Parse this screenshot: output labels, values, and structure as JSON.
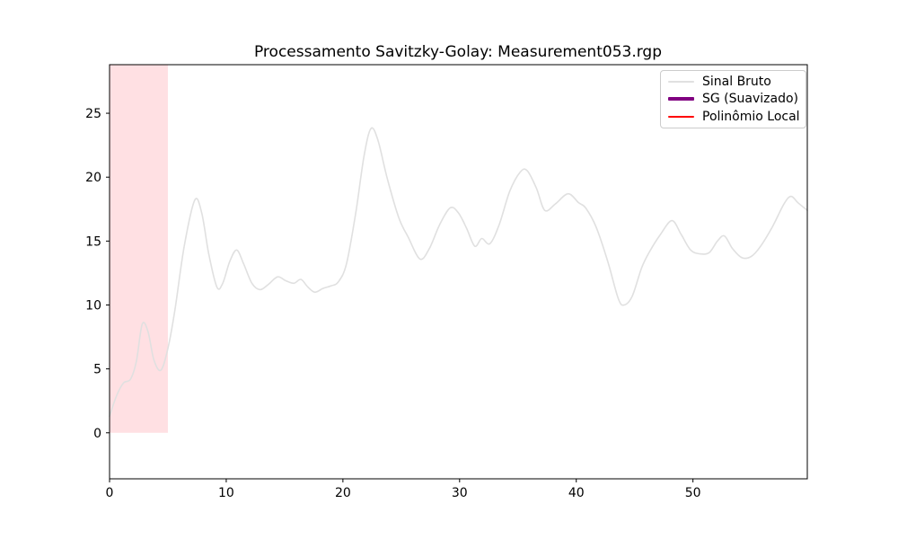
{
  "figure": {
    "background": "#ffffff"
  },
  "chart_data": {
    "type": "line",
    "title": "Processamento Savitzky-Golay: Measurement053.rgp",
    "xlabel": "",
    "ylabel": "",
    "xlim": [
      0,
      59.8
    ],
    "ylim": [
      -3.6,
      28.8
    ],
    "xticks": [
      0,
      10,
      20,
      30,
      40,
      50
    ],
    "yticks": [
      0,
      5,
      10,
      15,
      20,
      25
    ],
    "grid": false,
    "axis_color": "#000000",
    "legend": {
      "position": "upper right",
      "entries": [
        {
          "label": "Sinal Bruto",
          "color": "#e0e0e0",
          "linewidth": 2
        },
        {
          "label": "SG (Suavizado)",
          "color": "#800080",
          "linewidth": 4
        },
        {
          "label": "Polinômio Local",
          "color": "#ff0000",
          "linewidth": 2
        }
      ]
    },
    "shaded_region": {
      "x_start": 0,
      "x_end": 5,
      "y_start": 0,
      "y_end": 28.8,
      "color": "#ffe0e3"
    },
    "series": [
      {
        "name": "Sinal Bruto",
        "color": "#e0e0e0",
        "linewidth": 1.6,
        "points": [
          [
            0,
            1.3
          ],
          [
            0.6,
            2.9
          ],
          [
            1.2,
            3.9
          ],
          [
            1.8,
            4.2
          ],
          [
            2.3,
            5.6
          ],
          [
            2.8,
            8.5
          ],
          [
            3.3,
            7.9
          ],
          [
            3.8,
            5.7
          ],
          [
            4.4,
            4.9
          ],
          [
            5.0,
            6.6
          ],
          [
            5.6,
            9.6
          ],
          [
            6.4,
            14.6
          ],
          [
            7.3,
            18.2
          ],
          [
            7.9,
            17.2
          ],
          [
            8.5,
            14.0
          ],
          [
            9.2,
            11.4
          ],
          [
            9.7,
            11.7
          ],
          [
            10.3,
            13.4
          ],
          [
            10.9,
            14.3
          ],
          [
            11.5,
            13.2
          ],
          [
            12.2,
            11.7
          ],
          [
            12.9,
            11.2
          ],
          [
            13.6,
            11.6
          ],
          [
            14.4,
            12.2
          ],
          [
            15.1,
            11.9
          ],
          [
            15.8,
            11.7
          ],
          [
            16.4,
            12.0
          ],
          [
            17.0,
            11.4
          ],
          [
            17.6,
            11.0
          ],
          [
            18.3,
            11.3
          ],
          [
            19.0,
            11.5
          ],
          [
            19.6,
            11.8
          ],
          [
            20.3,
            13.2
          ],
          [
            21.1,
            17.2
          ],
          [
            21.8,
            21.6
          ],
          [
            22.4,
            23.8
          ],
          [
            23.0,
            22.9
          ],
          [
            23.8,
            19.9
          ],
          [
            24.8,
            16.8
          ],
          [
            25.6,
            15.3
          ],
          [
            26.6,
            13.6
          ],
          [
            27.4,
            14.4
          ],
          [
            28.3,
            16.3
          ],
          [
            29.2,
            17.6
          ],
          [
            29.9,
            17.2
          ],
          [
            30.6,
            16.0
          ],
          [
            31.3,
            14.6
          ],
          [
            31.9,
            15.2
          ],
          [
            32.6,
            14.8
          ],
          [
            33.4,
            16.3
          ],
          [
            34.3,
            18.9
          ],
          [
            35.2,
            20.4
          ],
          [
            35.8,
            20.5
          ],
          [
            36.6,
            19.1
          ],
          [
            37.3,
            17.4
          ],
          [
            38.2,
            17.9
          ],
          [
            39.3,
            18.7
          ],
          [
            40.2,
            18.0
          ],
          [
            40.8,
            17.6
          ],
          [
            41.7,
            16.1
          ],
          [
            42.7,
            13.4
          ],
          [
            43.6,
            10.5
          ],
          [
            44.1,
            10.0
          ],
          [
            44.8,
            10.7
          ],
          [
            45.6,
            12.9
          ],
          [
            46.3,
            14.2
          ],
          [
            47.2,
            15.5
          ],
          [
            48.2,
            16.6
          ],
          [
            49.0,
            15.5
          ],
          [
            49.8,
            14.3
          ],
          [
            50.6,
            14.0
          ],
          [
            51.4,
            14.1
          ],
          [
            52.1,
            15.0
          ],
          [
            52.7,
            15.4
          ],
          [
            53.4,
            14.4
          ],
          [
            54.2,
            13.7
          ],
          [
            55.0,
            13.8
          ],
          [
            55.8,
            14.6
          ],
          [
            56.8,
            16.1
          ],
          [
            57.8,
            17.9
          ],
          [
            58.4,
            18.5
          ],
          [
            59.0,
            18.0
          ],
          [
            59.8,
            17.4
          ]
        ]
      },
      {
        "name": "SG (Suavizado)",
        "color": "#800080",
        "linewidth": 3,
        "points": []
      },
      {
        "name": "Polinômio Local",
        "color": "#ff0000",
        "linewidth": 1.8,
        "points": []
      }
    ]
  }
}
